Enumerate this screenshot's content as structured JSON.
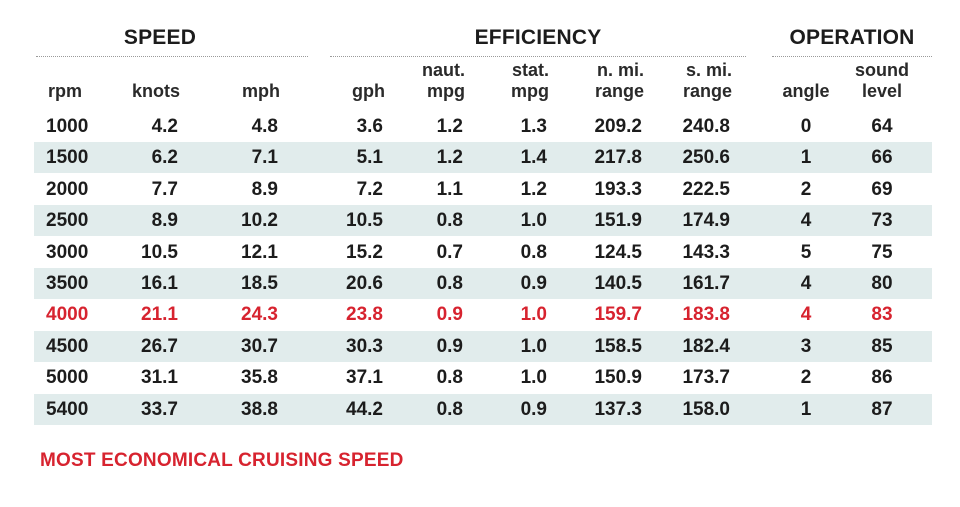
{
  "chart_data": {
    "type": "table",
    "groups": [
      {
        "title": "SPEED",
        "columns": [
          "rpm",
          "knots",
          "mph"
        ]
      },
      {
        "title": "EFFICIENCY",
        "columns": [
          "gph",
          "naut. mpg",
          "stat. mpg",
          "n. mi. range",
          "s. mi. range"
        ]
      },
      {
        "title": "OPERATION",
        "columns": [
          "angle",
          "sound level"
        ]
      }
    ],
    "headers": [
      {
        "l1": "",
        "l2": "rpm"
      },
      {
        "l1": "",
        "l2": "knots"
      },
      {
        "l1": "",
        "l2": "mph"
      },
      {
        "l1": "",
        "l2": "gph"
      },
      {
        "l1": "naut.",
        "l2": "mpg"
      },
      {
        "l1": "stat.",
        "l2": "mpg"
      },
      {
        "l1": "n. mi.",
        "l2": "range"
      },
      {
        "l1": "s. mi.",
        "l2": "range"
      },
      {
        "l1": "",
        "l2": "angle"
      },
      {
        "l1": "sound",
        "l2": "level"
      }
    ],
    "rows": [
      [
        "1000",
        "4.2",
        "4.8",
        "3.6",
        "1.2",
        "1.3",
        "209.2",
        "240.8",
        "0",
        "64"
      ],
      [
        "1500",
        "6.2",
        "7.1",
        "5.1",
        "1.2",
        "1.4",
        "217.8",
        "250.6",
        "1",
        "66"
      ],
      [
        "2000",
        "7.7",
        "8.9",
        "7.2",
        "1.1",
        "1.2",
        "193.3",
        "222.5",
        "2",
        "69"
      ],
      [
        "2500",
        "8.9",
        "10.2",
        "10.5",
        "0.8",
        "1.0",
        "151.9",
        "174.9",
        "4",
        "73"
      ],
      [
        "3000",
        "10.5",
        "12.1",
        "15.2",
        "0.7",
        "0.8",
        "124.5",
        "143.3",
        "5",
        "75"
      ],
      [
        "3500",
        "16.1",
        "18.5",
        "20.6",
        "0.8",
        "0.9",
        "140.5",
        "161.7",
        "4",
        "80"
      ],
      [
        "4000",
        "21.1",
        "24.3",
        "23.8",
        "0.9",
        "1.0",
        "159.7",
        "183.8",
        "4",
        "83"
      ],
      [
        "4500",
        "26.7",
        "30.7",
        "30.3",
        "0.9",
        "1.0",
        "158.5",
        "182.4",
        "3",
        "85"
      ],
      [
        "5000",
        "31.1",
        "35.8",
        "37.1",
        "0.8",
        "1.0",
        "150.9",
        "173.7",
        "2",
        "86"
      ],
      [
        "5400",
        "33.7",
        "38.8",
        "44.2",
        "0.8",
        "0.9",
        "137.3",
        "158.0",
        "1",
        "87"
      ]
    ],
    "highlight_row": 6,
    "highlight_color": "#d7232f",
    "shaded_row_color": "#e1ecec"
  },
  "footnote": "MOST ECONOMICAL CRUISING SPEED"
}
